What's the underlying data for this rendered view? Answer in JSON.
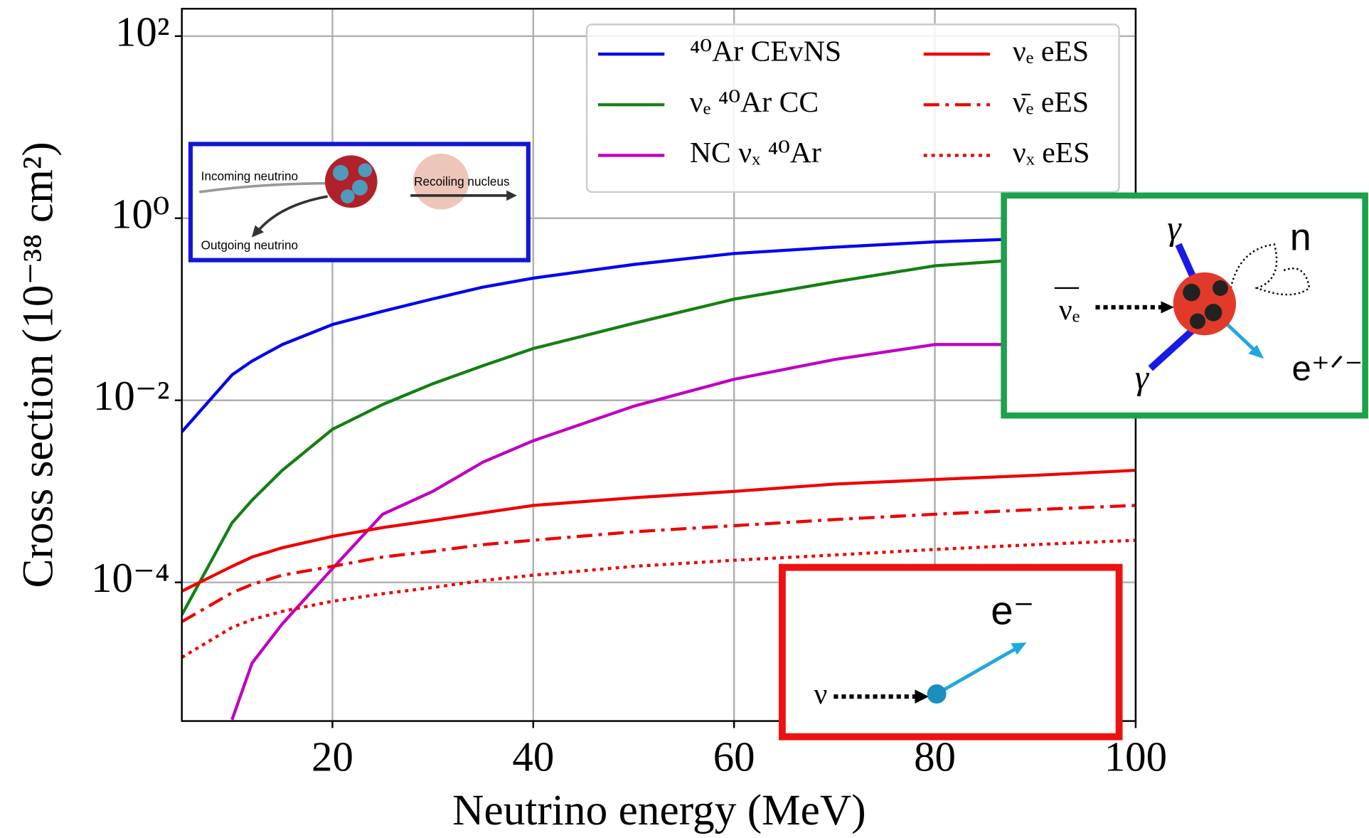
{
  "chart_data": {
    "type": "line",
    "x_label": "Neutrino energy (MeV)",
    "y_label": "Cross section (10⁻³⁸ cm²)",
    "x": [
      5,
      10,
      12,
      15,
      20,
      25,
      30,
      35,
      40,
      50,
      60,
      70,
      80,
      90,
      100
    ],
    "xlim": [
      5,
      100
    ],
    "xticks": [
      20,
      40,
      60,
      80,
      100
    ],
    "ylim": [
      3e-06,
      200
    ],
    "yscale": "log",
    "yticks": [
      {
        "value": 100,
        "label": "10²"
      },
      {
        "value": 1,
        "label": "10⁰"
      },
      {
        "value": 0.01,
        "label": "10⁻²"
      },
      {
        "value": 0.0001,
        "label": "10⁻⁴"
      }
    ],
    "grid": true,
    "legend_position": "upper right",
    "series": [
      {
        "name": "⁴⁰Ar CEvNS",
        "color": "#0000ee",
        "linestyle": "solid",
        "values": [
          0.0045,
          0.019,
          0.027,
          0.041,
          0.068,
          0.095,
          0.13,
          0.175,
          0.22,
          0.31,
          0.41,
          0.48,
          0.55,
          0.6,
          0.65
        ]
      },
      {
        "name": "νₑ ⁴⁰Ar CC",
        "color": "#138013",
        "linestyle": "solid",
        "values": [
          4.4e-05,
          0.00045,
          0.0008,
          0.0017,
          0.0048,
          0.009,
          0.0152,
          0.024,
          0.037,
          0.07,
          0.129,
          0.2,
          0.3,
          0.36,
          0.41
        ]
      },
      {
        "name": "NC νₓ ⁴⁰Ar",
        "color": "#bf00bf",
        "linestyle": "solid",
        "values": [
          null,
          3.1e-06,
          1.3e-05,
          3.5e-05,
          0.000142,
          0.00056,
          0.001,
          0.0021,
          0.0036,
          0.0086,
          0.017,
          0.028,
          0.041,
          0.041,
          0.041
        ]
      },
      {
        "name": "νₑ eES",
        "color": "#ee0000",
        "linestyle": "solid",
        "values": [
          8e-05,
          0.00015,
          0.00019,
          0.00024,
          0.00032,
          0.0004,
          0.00048,
          0.00058,
          0.0007,
          0.00085,
          0.001,
          0.0012,
          0.00135,
          0.0015,
          0.0017
        ]
      },
      {
        "name": "ν̄ₑ eES",
        "color": "#ee0000",
        "linestyle": "dashdot",
        "values": [
          3.7e-05,
          7.7e-05,
          9.5e-05,
          0.00012,
          0.00015,
          0.00019,
          0.00022,
          0.00026,
          0.00029,
          0.00036,
          0.00042,
          0.00049,
          0.00056,
          0.00063,
          0.0007
        ]
      },
      {
        "name": "νₓ eES",
        "color": "#ee0000",
        "linestyle": "dotted",
        "values": [
          1.5e-05,
          3.2e-05,
          3.9e-05,
          4.8e-05,
          6.2e-05,
          7.5e-05,
          8.8e-05,
          0.000105,
          0.00012,
          0.00015,
          0.000175,
          0.0002,
          0.00023,
          0.00026,
          0.00029
        ]
      }
    ],
    "annotations": [
      "Incoming neutrino",
      "Outgoing neutrino",
      "Recoiling nucleus",
      "γ",
      "γ",
      "n",
      "νₑ",
      "e⁺ᐟ⁻",
      "e⁻",
      "ν"
    ]
  }
}
